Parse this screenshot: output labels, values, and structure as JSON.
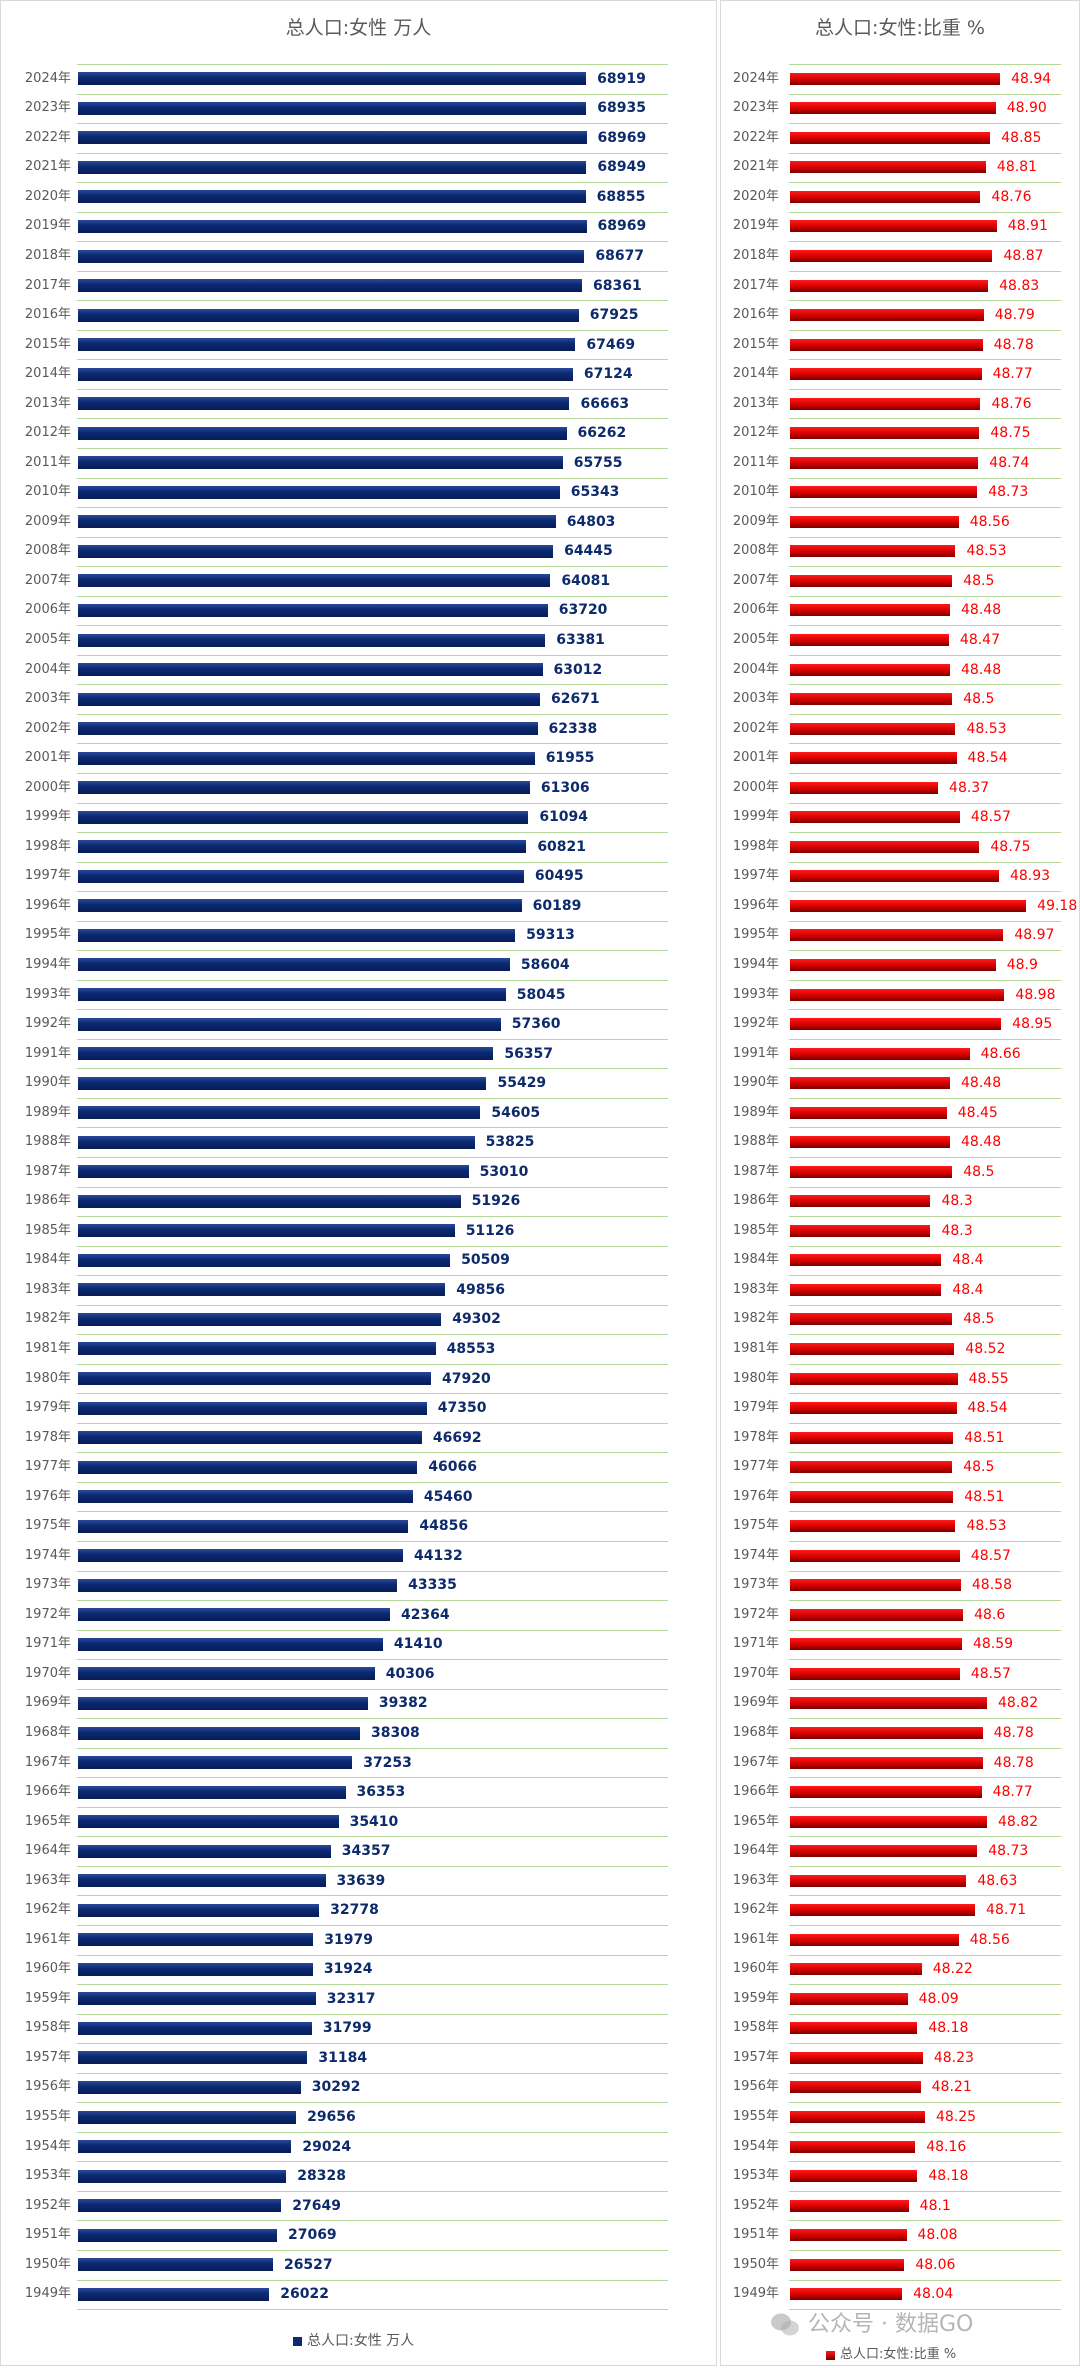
{
  "chart_data": [
    {
      "type": "bar",
      "orientation": "horizontal",
      "title": "总人口:女性 万人",
      "legend": {
        "label": "总人口:女性 万人",
        "placement": "bottom",
        "color": "#0c2a74"
      },
      "xlim": [
        0,
        80000
      ],
      "grid": true,
      "categories": [
        "2024年",
        "2023年",
        "2022年",
        "2021年",
        "2020年",
        "2019年",
        "2018年",
        "2017年",
        "2016年",
        "2015年",
        "2014年",
        "2013年",
        "2012年",
        "2011年",
        "2010年",
        "2009年",
        "2008年",
        "2007年",
        "2006年",
        "2005年",
        "2004年",
        "2003年",
        "2002年",
        "2001年",
        "2000年",
        "1999年",
        "1998年",
        "1997年",
        "1996年",
        "1995年",
        "1994年",
        "1993年",
        "1992年",
        "1991年",
        "1990年",
        "1989年",
        "1988年",
        "1987年",
        "1986年",
        "1985年",
        "1984年",
        "1983年",
        "1982年",
        "1981年",
        "1980年",
        "1979年",
        "1978年",
        "1977年",
        "1976年",
        "1975年",
        "1974年",
        "1973年",
        "1972年",
        "1971年",
        "1970年",
        "1969年",
        "1968年",
        "1967年",
        "1966年",
        "1965年",
        "1964年",
        "1963年",
        "1962年",
        "1961年",
        "1960年",
        "1959年",
        "1958年",
        "1957年",
        "1956年",
        "1955年",
        "1954年",
        "1953年",
        "1952年",
        "1951年",
        "1950年",
        "1949年"
      ],
      "values": [
        68919,
        68935,
        68969,
        68949,
        68855,
        68969,
        68677,
        68361,
        67925,
        67469,
        67124,
        66663,
        66262,
        65755,
        65343,
        64803,
        64445,
        64081,
        63720,
        63381,
        63012,
        62671,
        62338,
        61955,
        61306,
        61094,
        60821,
        60495,
        60189,
        59313,
        58604,
        58045,
        57360,
        56357,
        55429,
        54605,
        53825,
        53010,
        51926,
        51126,
        50509,
        49856,
        49302,
        48553,
        47920,
        47350,
        46692,
        46066,
        45460,
        44856,
        44132,
        43335,
        42364,
        41410,
        40306,
        39382,
        38308,
        37253,
        36353,
        35410,
        34357,
        33639,
        32778,
        31979,
        31924,
        32317,
        31799,
        31184,
        30292,
        29656,
        29024,
        28328,
        27649,
        27069,
        26527,
        26022
      ]
    },
    {
      "type": "bar",
      "orientation": "horizontal",
      "title": "总人口:女性:比重 %",
      "legend": {
        "label": "总人口:女性:比重 %",
        "placement": "bottom",
        "color": "#d40000"
      },
      "xlim": [
        47,
        49.5
      ],
      "grid": true,
      "categories": [
        "2024年",
        "2023年",
        "2022年",
        "2021年",
        "2020年",
        "2019年",
        "2018年",
        "2017年",
        "2016年",
        "2015年",
        "2014年",
        "2013年",
        "2012年",
        "2011年",
        "2010年",
        "2009年",
        "2008年",
        "2007年",
        "2006年",
        "2005年",
        "2004年",
        "2003年",
        "2002年",
        "2001年",
        "2000年",
        "1999年",
        "1998年",
        "1997年",
        "1996年",
        "1995年",
        "1994年",
        "1993年",
        "1992年",
        "1991年",
        "1990年",
        "1989年",
        "1988年",
        "1987年",
        "1986年",
        "1985年",
        "1984年",
        "1983年",
        "1982年",
        "1981年",
        "1980年",
        "1979年",
        "1978年",
        "1977年",
        "1976年",
        "1975年",
        "1974年",
        "1973年",
        "1972年",
        "1971年",
        "1970年",
        "1969年",
        "1968年",
        "1967年",
        "1966年",
        "1965年",
        "1964年",
        "1963年",
        "1962年",
        "1961年",
        "1960年",
        "1959年",
        "1958年",
        "1957年",
        "1956年",
        "1955年",
        "1954年",
        "1953年",
        "1952年",
        "1951年",
        "1950年",
        "1949年"
      ],
      "values": [
        "48.94",
        "48.90",
        "48.85",
        "48.81",
        "48.76",
        "48.91",
        "48.87",
        "48.83",
        "48.79",
        "48.78",
        "48.77",
        "48.76",
        "48.75",
        "48.74",
        "48.73",
        "48.56",
        "48.53",
        "48.5",
        "48.48",
        "48.47",
        "48.48",
        "48.5",
        "48.53",
        "48.54",
        "48.37",
        "48.57",
        "48.75",
        "48.93",
        "49.18",
        "48.97",
        "48.9",
        "48.98",
        "48.95",
        "48.66",
        "48.48",
        "48.45",
        "48.48",
        "48.5",
        "48.3",
        "48.3",
        "48.4",
        "48.4",
        "48.5",
        "48.52",
        "48.55",
        "48.54",
        "48.51",
        "48.5",
        "48.51",
        "48.53",
        "48.57",
        "48.58",
        "48.6",
        "48.59",
        "48.57",
        "48.82",
        "48.78",
        "48.78",
        "48.77",
        "48.82",
        "48.73",
        "48.63",
        "48.71",
        "48.56",
        "48.22",
        "48.09",
        "48.18",
        "48.23",
        "48.21",
        "48.25",
        "48.16",
        "48.18",
        "48.1",
        "48.08",
        "48.06",
        "48.04"
      ]
    }
  ],
  "watermark": {
    "text": "公众号 · 数据GO",
    "icon": "wechat-icon"
  }
}
